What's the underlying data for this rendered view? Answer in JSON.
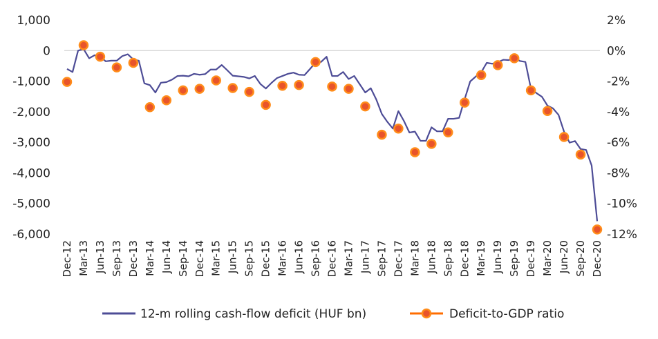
{
  "chart_data": {
    "type": "line",
    "x_categories": [
      "Dec-12",
      "Jan-13",
      "Feb-13",
      "Mar-13",
      "Apr-13",
      "May-13",
      "Jun-13",
      "Jul-13",
      "Aug-13",
      "Sep-13",
      "Oct-13",
      "Nov-13",
      "Dec-13",
      "Jan-14",
      "Feb-14",
      "Mar-14",
      "Apr-14",
      "May-14",
      "Jun-14",
      "Jul-14",
      "Aug-14",
      "Sep-14",
      "Oct-14",
      "Nov-14",
      "Dec-14",
      "Jan-15",
      "Feb-15",
      "Mar-15",
      "Apr-15",
      "May-15",
      "Jun-15",
      "Jul-15",
      "Aug-15",
      "Sep-15",
      "Oct-15",
      "Nov-15",
      "Dec-15",
      "Jan-16",
      "Feb-16",
      "Mar-16",
      "Apr-16",
      "May-16",
      "Jun-16",
      "Jul-16",
      "Aug-16",
      "Sep-16",
      "Oct-16",
      "Nov-16",
      "Dec-16",
      "Jan-17",
      "Feb-17",
      "Mar-17",
      "Apr-17",
      "May-17",
      "Jun-17",
      "Jul-17",
      "Aug-17",
      "Sep-17",
      "Oct-17",
      "Nov-17",
      "Dec-17",
      "Jan-18",
      "Feb-18",
      "Mar-18",
      "Apr-18",
      "May-18",
      "Jun-18",
      "Jul-18",
      "Aug-18",
      "Sep-18",
      "Oct-18",
      "Nov-18",
      "Dec-18",
      "Jan-19",
      "Feb-19",
      "Mar-19",
      "Apr-19",
      "May-19",
      "Jun-19",
      "Jul-19",
      "Aug-19",
      "Sep-19",
      "Oct-19",
      "Nov-19",
      "Dec-19",
      "Jan-20",
      "Feb-20",
      "Mar-20",
      "Apr-20",
      "May-20",
      "Jun-20",
      "Jul-20",
      "Aug-20",
      "Sep-20",
      "Oct-20",
      "Nov-20",
      "Dec-20"
    ],
    "x_tick_labels": [
      "Dec-12",
      "Mar-13",
      "Jun-13",
      "Sep-13",
      "Dec-13",
      "Mar-14",
      "Jun-14",
      "Sep-14",
      "Dec-14",
      "Mar-15",
      "Jun-15",
      "Sep-15",
      "Dec-15",
      "Mar-16",
      "Jun-16",
      "Sep-16",
      "Dec-16",
      "Mar-17",
      "Jun-17",
      "Sep-17",
      "Dec-17",
      "Mar-18",
      "Jun-18",
      "Sep-18",
      "Dec-18",
      "Mar-19",
      "Jun-19",
      "Sep-19",
      "Dec-19",
      "Mar-20",
      "Jun-20",
      "Sep-20",
      "Dec-20"
    ],
    "y_left": {
      "range": [
        -6000,
        1000
      ],
      "ticks": [
        1000,
        0,
        -1000,
        -2000,
        -3000,
        -4000,
        -5000,
        -6000
      ],
      "tick_labels": [
        "1,000",
        "0",
        "-1,000",
        "-2,000",
        "-3,000",
        "-4,000",
        "-5,000",
        "-6,000"
      ]
    },
    "y_right": {
      "range": [
        -12,
        2
      ],
      "ticks": [
        2,
        0,
        -2,
        -4,
        -6,
        -8,
        -10,
        -12
      ],
      "tick_labels": [
        "2%",
        "0%",
        "-2%",
        "-4%",
        "-6%",
        "-8%",
        "-10%",
        "-12%"
      ]
    },
    "grid": false,
    "legend_position": "bottom",
    "series": [
      {
        "name": "12-m rolling cash-flow deficit (HUF bn)",
        "type": "line",
        "axis": "left",
        "color": "#4d4c96",
        "values": [
          -600,
          -700,
          0,
          50,
          -250,
          -150,
          -200,
          -350,
          -330,
          -330,
          -180,
          -120,
          -290,
          -330,
          -1070,
          -1130,
          -1370,
          -1050,
          -1030,
          -950,
          -830,
          -820,
          -840,
          -760,
          -790,
          -770,
          -620,
          -620,
          -470,
          -640,
          -820,
          -840,
          -860,
          -910,
          -830,
          -1090,
          -1240,
          -1060,
          -900,
          -830,
          -760,
          -720,
          -790,
          -800,
          -600,
          -390,
          -370,
          -200,
          -830,
          -830,
          -700,
          -930,
          -830,
          -1100,
          -1370,
          -1230,
          -1600,
          -2070,
          -2330,
          -2550,
          -1980,
          -2300,
          -2680,
          -2650,
          -2950,
          -2950,
          -2510,
          -2640,
          -2640,
          -2230,
          -2230,
          -2200,
          -1590,
          -1010,
          -850,
          -710,
          -400,
          -430,
          -380,
          -300,
          -310,
          -230,
          -340,
          -370,
          -1240,
          -1390,
          -1510,
          -1800,
          -1890,
          -2100,
          -2650,
          -3010,
          -2960,
          -3220,
          -3250,
          -3760,
          -5580
        ]
      },
      {
        "name": "Deficit-to-GDP ratio",
        "type": "scatter",
        "axis": "right",
        "color": "#ff6d00",
        "marker_fill": "#e8542b",
        "x": [
          "Dec-12",
          "Mar-13",
          "Jun-13",
          "Sep-13",
          "Dec-13",
          "Mar-14",
          "Jun-14",
          "Sep-14",
          "Dec-14",
          "Mar-15",
          "Jun-15",
          "Sep-15",
          "Dec-15",
          "Mar-16",
          "Jun-16",
          "Sep-16",
          "Dec-16",
          "Mar-17",
          "Jun-17",
          "Sep-17",
          "Dec-17",
          "Mar-18",
          "Jun-18",
          "Sep-18",
          "Dec-18",
          "Mar-19",
          "Jun-19",
          "Sep-19",
          "Dec-19",
          "Mar-20",
          "Jun-20",
          "Sep-20",
          "Dec-20"
        ],
        "values": [
          -2.05,
          0.35,
          -0.4,
          -1.1,
          -0.8,
          -3.7,
          -3.25,
          -2.6,
          -2.5,
          -1.95,
          -2.45,
          -2.7,
          -3.55,
          -2.3,
          -2.25,
          -0.75,
          -2.35,
          -2.5,
          -3.65,
          -5.5,
          -5.1,
          -6.65,
          -6.1,
          -5.35,
          -3.4,
          -1.6,
          -0.95,
          -0.5,
          -2.6,
          -3.95,
          -5.65,
          -6.8,
          -11.7
        ]
      }
    ]
  }
}
